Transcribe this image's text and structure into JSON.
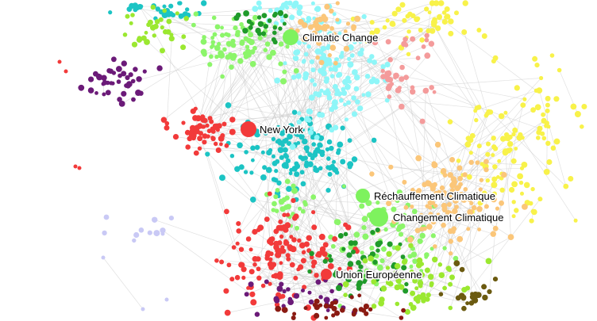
{
  "graph": {
    "edge_color": "#c8c8c8",
    "clusters": [
      {
        "name": "climate-english",
        "color": "#8cf56a"
      },
      {
        "name": "teal",
        "color": "#1cc4c4"
      },
      {
        "name": "light-cyan",
        "color": "#8ef6f8"
      },
      {
        "name": "red",
        "color": "#f23a3a"
      },
      {
        "name": "purple",
        "color": "#6b1a78"
      },
      {
        "name": "yellow",
        "color": "#f8f24a"
      },
      {
        "name": "orange",
        "color": "#fbc679"
      },
      {
        "name": "pink",
        "color": "#f49b9b"
      },
      {
        "name": "dark-green",
        "color": "#1f9a2a"
      },
      {
        "name": "lime",
        "color": "#9be830"
      },
      {
        "name": "dark-red",
        "color": "#8a1a12"
      },
      {
        "name": "olive",
        "color": "#6b5a10"
      },
      {
        "name": "lavender",
        "color": "#c9c9f5"
      }
    ],
    "hubs": [
      {
        "label": "Climatic Change",
        "color": "#7ef25e"
      },
      {
        "label": "New York",
        "color": "#f23a3a"
      },
      {
        "label": "Réchauffement Climatique",
        "color": "#7ef25e"
      },
      {
        "label": "Changement Climatique",
        "color": "#7ef25e"
      },
      {
        "label": "Union Européenne",
        "color": "#f23a3a"
      }
    ]
  }
}
